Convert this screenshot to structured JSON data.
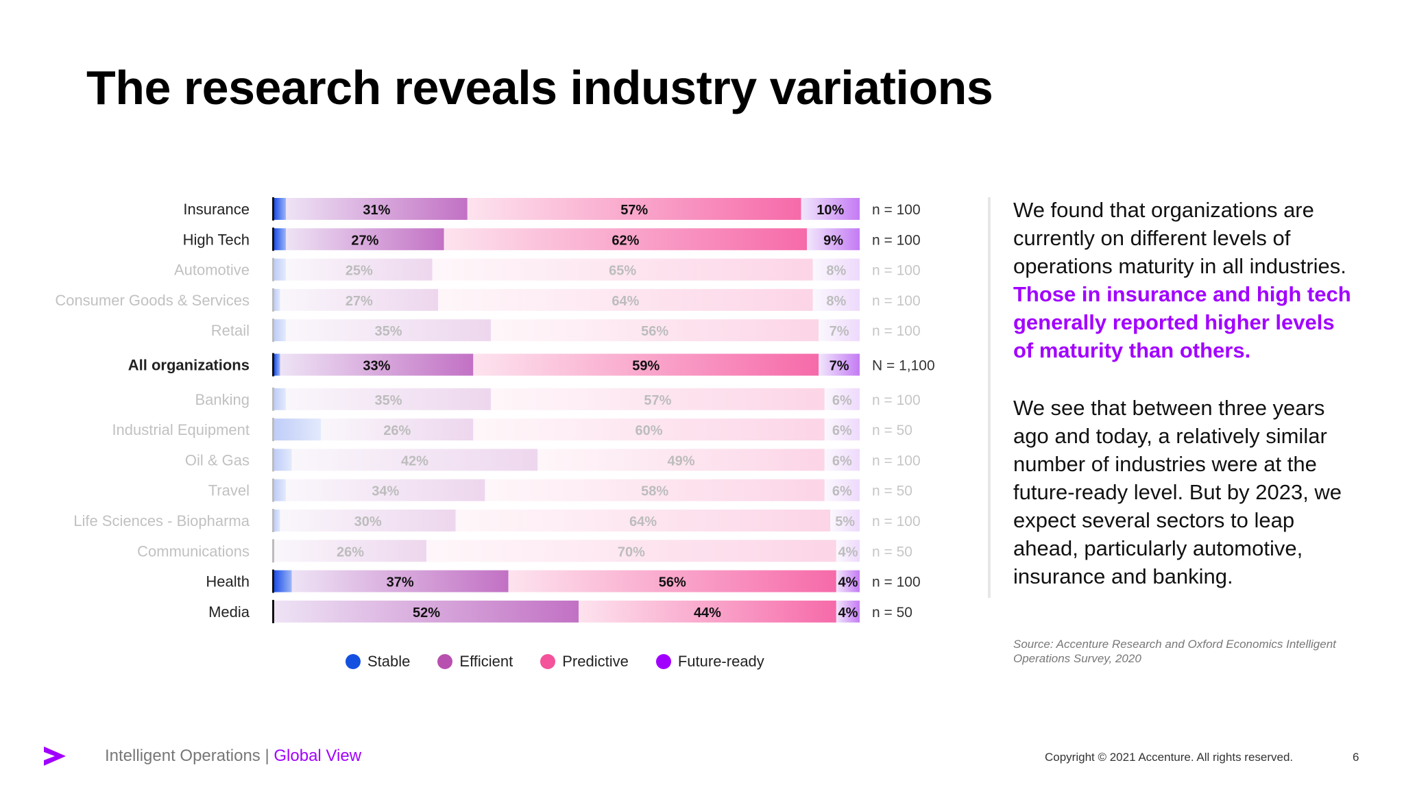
{
  "title": "The research reveals industry variations",
  "chart_data": {
    "type": "bar",
    "orientation": "horizontal",
    "stacked": true,
    "percent_stacked": true,
    "series_names": [
      "Stable",
      "Efficient",
      "Predictive",
      "Future-ready"
    ],
    "series_colors": [
      "#2a5ff0",
      "#b850b0",
      "#f4529a",
      "#a100ff"
    ],
    "rows": [
      {
        "label": "Insurance",
        "stable": 2,
        "efficient": 31,
        "predictive": 57,
        "future_ready": 10,
        "labels": [
          "31%",
          "57%",
          "10%"
        ],
        "n": "n = 100",
        "highlight": true,
        "bold": false
      },
      {
        "label": "High Tech",
        "stable": 2,
        "efficient": 27,
        "predictive": 62,
        "future_ready": 9,
        "labels": [
          "27%",
          "62%",
          "9%"
        ],
        "n": "n = 100",
        "highlight": true,
        "bold": false
      },
      {
        "label": "Automotive",
        "stable": 2,
        "efficient": 25,
        "predictive": 65,
        "future_ready": 8,
        "labels": [
          "25%",
          "65%",
          "8%"
        ],
        "n": "n = 100",
        "highlight": false,
        "bold": false
      },
      {
        "label": "Consumer Goods & Services",
        "stable": 1,
        "efficient": 27,
        "predictive": 64,
        "future_ready": 8,
        "labels": [
          "27%",
          "64%",
          "8%"
        ],
        "n": "n = 100",
        "highlight": false,
        "bold": false
      },
      {
        "label": "Retail",
        "stable": 2,
        "efficient": 35,
        "predictive": 56,
        "future_ready": 7,
        "labels": [
          "35%",
          "56%",
          "7%"
        ],
        "n": "n = 100",
        "highlight": false,
        "bold": false
      },
      {
        "label": "All organizations",
        "stable": 1,
        "efficient": 33,
        "predictive": 59,
        "future_ready": 7,
        "labels": [
          "33%",
          "59%",
          "7%"
        ],
        "n": "N = 1,100",
        "highlight": true,
        "bold": true
      },
      {
        "label": "Banking",
        "stable": 2,
        "efficient": 35,
        "predictive": 57,
        "future_ready": 6,
        "labels": [
          "35%",
          "57%",
          "6%"
        ],
        "n": "n = 100",
        "highlight": false,
        "bold": false
      },
      {
        "label": "Industrial Equipment",
        "stable": 8,
        "efficient": 26,
        "predictive": 60,
        "future_ready": 6,
        "labels": [
          "26%",
          "60%",
          "6%"
        ],
        "n": "n = 50",
        "highlight": false,
        "bold": false
      },
      {
        "label": "Oil & Gas",
        "stable": 3,
        "efficient": 42,
        "predictive": 49,
        "future_ready": 6,
        "labels": [
          "42%",
          "49%",
          "6%"
        ],
        "n": "n = 100",
        "highlight": false,
        "bold": false
      },
      {
        "label": "Travel",
        "stable": 2,
        "efficient": 34,
        "predictive": 58,
        "future_ready": 6,
        "labels": [
          "34%",
          "58%",
          "6%"
        ],
        "n": "n = 50",
        "highlight": false,
        "bold": false
      },
      {
        "label": "Life Sciences - Biopharma",
        "stable": 1,
        "efficient": 30,
        "predictive": 64,
        "future_ready": 5,
        "labels": [
          "30%",
          "64%",
          "5%"
        ],
        "n": "n = 100",
        "highlight": false,
        "bold": false
      },
      {
        "label": "Communications",
        "stable": 0,
        "efficient": 26,
        "predictive": 70,
        "future_ready": 4,
        "labels": [
          "26%",
          "70%",
          "4%"
        ],
        "n": "n = 50",
        "highlight": false,
        "bold": false
      },
      {
        "label": "Health",
        "stable": 3,
        "efficient": 37,
        "predictive": 56,
        "future_ready": 4,
        "labels": [
          "37%",
          "56%",
          "4%"
        ],
        "n": "n = 100",
        "highlight": true,
        "bold": false
      },
      {
        "label": "Media",
        "stable": 0,
        "efficient": 52,
        "predictive": 44,
        "future_ready": 4,
        "labels": [
          "52%",
          "44%",
          "4%"
        ],
        "n": "n = 50",
        "highlight": true,
        "bold": false
      }
    ]
  },
  "legend": {
    "stable": "Stable",
    "efficient": "Efficient",
    "predictive": "Predictive",
    "future_ready": "Future-ready"
  },
  "body": {
    "para1_plain": "We found that organizations are currently on different levels of operations maturity in all industries.",
    "para1_highlight": "Those in insurance and high tech generally reported higher levels of maturity than others.",
    "para2": "We see that between three years ago and today, a relatively similar number of industries were at the future-ready level. But by 2023, we expect several sectors to leap ahead, particularly automotive, insurance and banking."
  },
  "source": "Source: Accenture Research and Oxford Economics Intelligent Operations Survey, 2020",
  "footer": {
    "left": "Intelligent Operations |",
    "left_accent": "Global View",
    "copyright": "Copyright © 2021 Accenture. All rights reserved.",
    "page": "6"
  },
  "colors": {
    "accent": "#a100ff"
  }
}
